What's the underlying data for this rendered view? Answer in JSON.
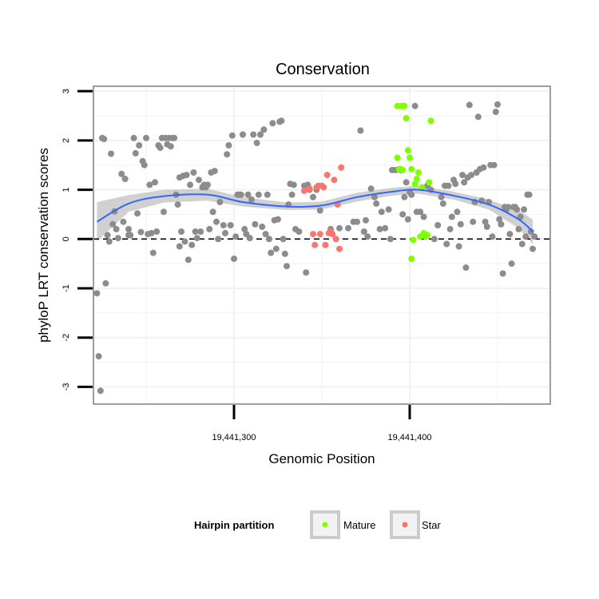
{
  "chart_data": {
    "type": "scatter",
    "title": "Conservation",
    "xlabel": "Genomic Position",
    "ylabel": "phyloP LRT conservation scores",
    "xlim": [
      19441220,
      19441480
    ],
    "ylim": [
      -3.35,
      3.1
    ],
    "x_ticks": [
      19441300,
      19441400
    ],
    "x_tick_labels": [
      "19,441,300",
      "19,441,400"
    ],
    "y_ticks": [
      -3,
      -2,
      -1,
      0,
      1,
      2,
      3
    ],
    "y_tick_labels": [
      "-3",
      "-2",
      "-1",
      "0",
      "1",
      "2",
      "3"
    ],
    "reference_line": {
      "y": 0,
      "style": "dashed",
      "color": "#000000"
    },
    "legend": {
      "title": "Hairpin partition",
      "placement": "bottom",
      "entries": [
        {
          "label": "Mature",
          "color": "#7fff00"
        },
        {
          "label": "Star",
          "color": "#f8766d"
        }
      ]
    },
    "colors": {
      "other": "#8c8c8c",
      "mature": "#7fff00",
      "star": "#f8766d",
      "smooth_line": "#3366ff",
      "smooth_band": "#c8c8c8",
      "panel_border": "#7f7f7f",
      "grid": "#f2f2f2"
    },
    "smooth": {
      "x": [
        19441222,
        19441240,
        19441260,
        19441285,
        19441305,
        19441330,
        19441350,
        19441370,
        19441390,
        19441405,
        19441425,
        19441445,
        19441462,
        19441470
      ],
      "y": [
        0.35,
        0.72,
        0.87,
        0.9,
        0.75,
        0.66,
        0.68,
        0.85,
        0.96,
        1.0,
        0.88,
        0.7,
        0.4,
        0.15
      ],
      "band_lower": [
        -0.05,
        0.55,
        0.74,
        0.78,
        0.66,
        0.59,
        0.6,
        0.76,
        0.88,
        0.92,
        0.8,
        0.6,
        0.22,
        -0.1
      ],
      "band_upper": [
        0.75,
        0.89,
        1.0,
        1.02,
        0.85,
        0.74,
        0.76,
        0.94,
        1.04,
        1.08,
        0.96,
        0.8,
        0.58,
        0.4
      ]
    },
    "series": [
      {
        "name": "Other",
        "points": [
          [
            19441222,
            -1.1
          ],
          [
            19441223,
            -2.38
          ],
          [
            19441224,
            -3.08
          ],
          [
            19441225,
            2.05
          ],
          [
            19441226,
            2.03
          ],
          [
            19441227,
            -0.9
          ],
          [
            19441228,
            0.08
          ],
          [
            19441229,
            -0.05
          ],
          [
            19441230,
            1.73
          ],
          [
            19441231,
            0.3
          ],
          [
            19441232,
            0.56
          ],
          [
            19441233,
            0.2
          ],
          [
            19441234,
            0.02
          ],
          [
            19441236,
            1.32
          ],
          [
            19441237,
            0.35
          ],
          [
            19441238,
            1.22
          ],
          [
            19441240,
            0.2
          ],
          [
            19441240,
            0.08
          ],
          [
            19441241,
            0.08
          ],
          [
            19441243,
            2.05
          ],
          [
            19441244,
            1.74
          ],
          [
            19441245,
            0.52
          ],
          [
            19441246,
            1.9
          ],
          [
            19441247,
            0.14
          ],
          [
            19441248,
            1.58
          ],
          [
            19441249,
            1.5
          ],
          [
            19441250,
            2.05
          ],
          [
            19441251,
            0.1
          ],
          [
            19441252,
            1.1
          ],
          [
            19441253,
            0.12
          ],
          [
            19441254,
            -0.28
          ],
          [
            19441255,
            1.15
          ],
          [
            19441256,
            0.15
          ],
          [
            19441257,
            1.9
          ],
          [
            19441258,
            1.85
          ],
          [
            19441259,
            2.05
          ],
          [
            19441260,
            0.55
          ],
          [
            19441261,
            2.05
          ],
          [
            19441262,
            1.92
          ],
          [
            19441263,
            2.05
          ],
          [
            19441264,
            1.88
          ],
          [
            19441265,
            2.05
          ],
          [
            19441266,
            2.05
          ],
          [
            19441267,
            0.9
          ],
          [
            19441268,
            0.7
          ],
          [
            19441269,
            1.25
          ],
          [
            19441269,
            -0.15
          ],
          [
            19441270,
            0.15
          ],
          [
            19441271,
            1.28
          ],
          [
            19441272,
            -0.05
          ],
          [
            19441273,
            1.3
          ],
          [
            19441274,
            -0.42
          ],
          [
            19441275,
            1.1
          ],
          [
            19441276,
            -0.12
          ],
          [
            19441277,
            1.35
          ],
          [
            19441278,
            0.15
          ],
          [
            19441279,
            0.02
          ],
          [
            19441280,
            1.2
          ],
          [
            19441281,
            0.15
          ],
          [
            19441282,
            1.05
          ],
          [
            19441283,
            1.1
          ],
          [
            19441284,
            1.05
          ],
          [
            19441285,
            1.1
          ],
          [
            19441286,
            0.2
          ],
          [
            19441287,
            1.35
          ],
          [
            19441288,
            0.55
          ],
          [
            19441289,
            1.38
          ],
          [
            19441290,
            0.35
          ],
          [
            19441291,
            0.0
          ],
          [
            19441292,
            0.75
          ],
          [
            19441294,
            0.28
          ],
          [
            19441295,
            0.12
          ],
          [
            19441296,
            1.72
          ],
          [
            19441297,
            1.9
          ],
          [
            19441298,
            0.28
          ],
          [
            19441299,
            2.1
          ],
          [
            19441300,
            -0.4
          ],
          [
            19441301,
            0.05
          ],
          [
            19441302,
            0.9
          ],
          [
            19441303,
            0.9
          ],
          [
            19441304,
            0.9
          ],
          [
            19441305,
            2.12
          ],
          [
            19441306,
            0.2
          ],
          [
            19441307,
            0.1
          ],
          [
            19441308,
            0.9
          ],
          [
            19441309,
            0.02
          ],
          [
            19441310,
            0.8
          ],
          [
            19441311,
            2.12
          ],
          [
            19441312,
            0.3
          ],
          [
            19441313,
            1.95
          ],
          [
            19441314,
            0.9
          ],
          [
            19441315,
            2.12
          ],
          [
            19441316,
            0.25
          ],
          [
            19441317,
            2.22
          ],
          [
            19441318,
            0.1
          ],
          [
            19441319,
            0.9
          ],
          [
            19441320,
            0.0
          ],
          [
            19441321,
            -0.28
          ],
          [
            19441322,
            2.35
          ],
          [
            19441323,
            0.38
          ],
          [
            19441324,
            -0.2
          ],
          [
            19441325,
            0.4
          ],
          [
            19441326,
            2.38
          ],
          [
            19441327,
            2.4
          ],
          [
            19441328,
            0.0
          ],
          [
            19441329,
            -0.3
          ],
          [
            19441330,
            -0.55
          ],
          [
            19441331,
            0.7
          ],
          [
            19441332,
            1.12
          ],
          [
            19441333,
            0.9
          ],
          [
            19441334,
            1.1
          ],
          [
            19441335,
            0.2
          ],
          [
            19441337,
            0.15
          ],
          [
            19441340,
            1.08
          ],
          [
            19441341,
            -0.68
          ],
          [
            19441342,
            1.1
          ],
          [
            19441343,
            1.0
          ],
          [
            19441345,
            0.85
          ],
          [
            19441347,
            1.0
          ],
          [
            19441349,
            0.58
          ],
          [
            19441355,
            0.2
          ],
          [
            19441360,
            0.22
          ],
          [
            19441365,
            0.22
          ],
          [
            19441368,
            0.35
          ],
          [
            19441370,
            0.35
          ],
          [
            19441372,
            2.2
          ],
          [
            19441374,
            0.15
          ],
          [
            19441375,
            0.38
          ],
          [
            19441376,
            0.05
          ],
          [
            19441378,
            1.02
          ],
          [
            19441380,
            0.85
          ],
          [
            19441381,
            0.72
          ],
          [
            19441383,
            0.2
          ],
          [
            19441384,
            0.55
          ],
          [
            19441386,
            0.22
          ],
          [
            19441388,
            0.6
          ],
          [
            19441389,
            0.0
          ],
          [
            19441390,
            1.4
          ],
          [
            19441392,
            1.4
          ],
          [
            19441395,
            1.4
          ],
          [
            19441396,
            0.5
          ],
          [
            19441397,
            0.85
          ],
          [
            19441398,
            1.15
          ],
          [
            19441399,
            0.4
          ],
          [
            19441400,
            0.95
          ],
          [
            19441401,
            0.9
          ],
          [
            19441403,
            2.7
          ],
          [
            19441404,
            0.55
          ],
          [
            19441406,
            0.55
          ],
          [
            19441408,
            0.45
          ],
          [
            19441410,
            1.08
          ],
          [
            19441412,
            1.0
          ],
          [
            19441414,
            0.0
          ],
          [
            19441416,
            0.28
          ],
          [
            19441418,
            0.85
          ],
          [
            19441419,
            0.72
          ],
          [
            19441420,
            1.08
          ],
          [
            19441421,
            -0.1
          ],
          [
            19441422,
            1.08
          ],
          [
            19441423,
            0.2
          ],
          [
            19441424,
            0.45
          ],
          [
            19441425,
            1.2
          ],
          [
            19441426,
            1.12
          ],
          [
            19441427,
            0.55
          ],
          [
            19441428,
            -0.15
          ],
          [
            19441429,
            0.3
          ],
          [
            19441430,
            1.3
          ],
          [
            19441431,
            1.15
          ],
          [
            19441432,
            -0.58
          ],
          [
            19441433,
            1.25
          ],
          [
            19441434,
            2.72
          ],
          [
            19441435,
            1.3
          ],
          [
            19441436,
            0.35
          ],
          [
            19441437,
            0.75
          ],
          [
            19441438,
            1.35
          ],
          [
            19441439,
            2.48
          ],
          [
            19441440,
            1.42
          ],
          [
            19441441,
            0.78
          ],
          [
            19441442,
            1.45
          ],
          [
            19441443,
            0.35
          ],
          [
            19441444,
            0.25
          ],
          [
            19441445,
            0.75
          ],
          [
            19441446,
            1.5
          ],
          [
            19441447,
            0.05
          ],
          [
            19441448,
            1.5
          ],
          [
            19441449,
            2.58
          ],
          [
            19441450,
            2.73
          ],
          [
            19441451,
            0.4
          ],
          [
            19441452,
            0.3
          ],
          [
            19441453,
            -0.7
          ],
          [
            19441454,
            0.65
          ],
          [
            19441455,
            0.6
          ],
          [
            19441456,
            0.65
          ],
          [
            19441457,
            0.1
          ],
          [
            19441458,
            -0.5
          ],
          [
            19441459,
            0.65
          ],
          [
            19441460,
            0.65
          ],
          [
            19441461,
            0.6
          ],
          [
            19441462,
            0.2
          ],
          [
            19441463,
            0.45
          ],
          [
            19441464,
            -0.1
          ],
          [
            19441465,
            0.6
          ],
          [
            19441466,
            0.05
          ],
          [
            19441467,
            0.9
          ],
          [
            19441468,
            0.9
          ],
          [
            19441469,
            0.15
          ],
          [
            19441470,
            -0.2
          ],
          [
            19441471,
            0.05
          ]
        ]
      },
      {
        "name": "Mature",
        "points": [
          [
            19441393,
            2.7
          ],
          [
            19441395,
            2.7
          ],
          [
            19441396,
            2.7
          ],
          [
            19441397,
            2.7
          ],
          [
            19441398,
            2.45
          ],
          [
            19441393,
            1.65
          ],
          [
            19441394,
            1.42
          ],
          [
            19441395,
            1.42
          ],
          [
            19441396,
            1.4
          ],
          [
            19441399,
            1.8
          ],
          [
            19441400,
            1.65
          ],
          [
            19441401,
            1.42
          ],
          [
            19441401,
            -0.4
          ],
          [
            19441402,
            -0.02
          ],
          [
            19441403,
            1.12
          ],
          [
            19441404,
            1.22
          ],
          [
            19441405,
            1.35
          ],
          [
            19441406,
            0.05
          ],
          [
            19441407,
            1.05
          ],
          [
            19441408,
            0.12
          ],
          [
            19441409,
            0.05
          ],
          [
            19441410,
            0.08
          ],
          [
            19441411,
            1.15
          ],
          [
            19441412,
            2.4
          ]
        ]
      },
      {
        "name": "Star",
        "points": [
          [
            19441340,
            0.98
          ],
          [
            19441343,
            1.02
          ],
          [
            19441345,
            0.1
          ],
          [
            19441346,
            -0.12
          ],
          [
            19441347,
            1.05
          ],
          [
            19441348,
            1.08
          ],
          [
            19441349,
            0.1
          ],
          [
            19441350,
            1.08
          ],
          [
            19441351,
            1.05
          ],
          [
            19441352,
            -0.12
          ],
          [
            19441353,
            1.3
          ],
          [
            19441354,
            0.12
          ],
          [
            19441355,
            0.15
          ],
          [
            19441356,
            0.1
          ],
          [
            19441357,
            1.2
          ],
          [
            19441358,
            0.0
          ],
          [
            19441359,
            0.7
          ],
          [
            19441360,
            -0.2
          ],
          [
            19441361,
            1.45
          ]
        ]
      }
    ]
  }
}
